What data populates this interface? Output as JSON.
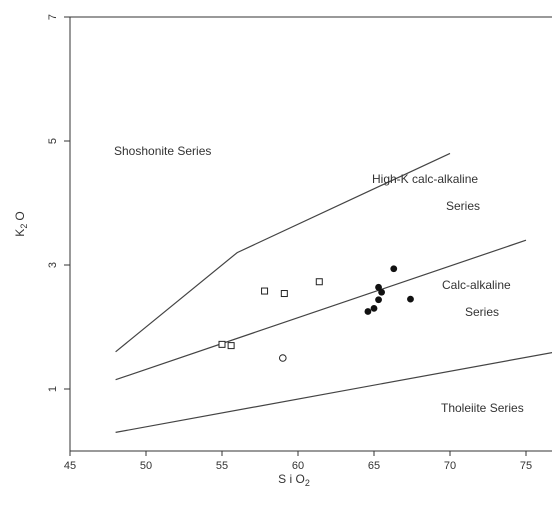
{
  "chart_data": {
    "type": "scatter",
    "xlabel": "S i O",
    "xlabel_sub": "2",
    "ylabel": "K",
    "ylabel_sub": "2",
    "ylabel_suffix": "O",
    "xlim": [
      45,
      77
    ],
    "ylim": [
      0,
      7
    ],
    "xticks": [
      "45",
      "50",
      "55",
      "60",
      "65",
      "70",
      "75"
    ],
    "yticks": [
      "1",
      "3",
      "5",
      "7"
    ],
    "grid": false,
    "regions": [
      {
        "label": "Shoshonite Series"
      },
      {
        "label": "High-K calc-alkaline",
        "label2": "Series"
      },
      {
        "label": "Calc-alkaline",
        "label2": "Series"
      },
      {
        "label": "Tholeiite Series"
      }
    ],
    "boundaries": [
      {
        "name": "shoshonite-highk",
        "points": [
          [
            48,
            1.6
          ],
          [
            56,
            3.2
          ],
          [
            70,
            4.8
          ]
        ]
      },
      {
        "name": "highk-calcalkaline",
        "points": [
          [
            48,
            1.15
          ],
          [
            75,
            3.4
          ]
        ]
      },
      {
        "name": "calcalkaline-tholeiite",
        "points": [
          [
            48,
            0.3
          ],
          [
            77,
            1.6
          ]
        ]
      }
    ],
    "series": [
      {
        "marker": "open-square",
        "points": [
          [
            57.8,
            2.58
          ],
          [
            59.1,
            2.54
          ],
          [
            61.4,
            2.73
          ],
          [
            55.0,
            1.72
          ],
          [
            55.6,
            1.7
          ]
        ]
      },
      {
        "marker": "open-circle",
        "points": [
          [
            59.0,
            1.5
          ]
        ]
      },
      {
        "marker": "filled-circle",
        "points": [
          [
            66.3,
            2.94
          ],
          [
            65.3,
            2.64
          ],
          [
            65.5,
            2.56
          ],
          [
            65.3,
            2.44
          ],
          [
            67.4,
            2.45
          ],
          [
            65.0,
            2.3
          ],
          [
            64.6,
            2.25
          ]
        ]
      }
    ]
  }
}
